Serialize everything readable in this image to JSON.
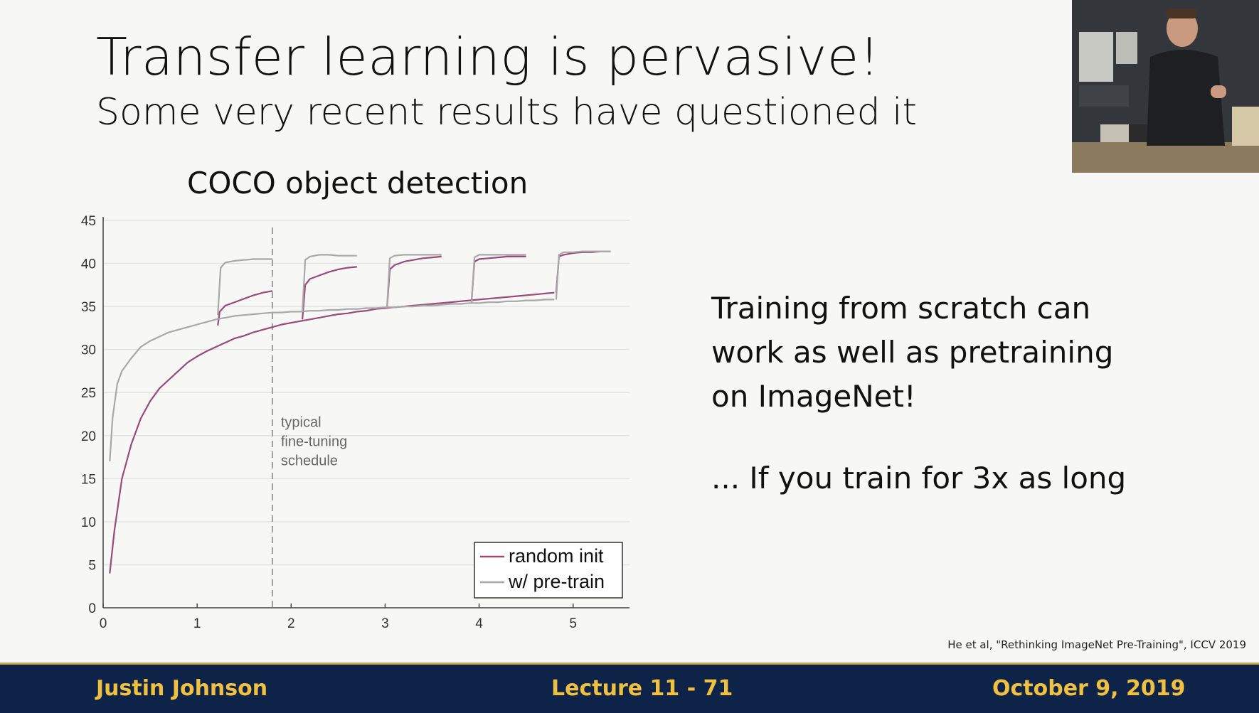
{
  "slide": {
    "title": "Transfer learning is pervasive!",
    "subtitle": "Some very recent results have questioned it",
    "side_text": [
      "Training from scratch can",
      "work as well as pretraining",
      "on ImageNet!"
    ],
    "side_note": "... If you train for 3x as long",
    "citation": "He et al, \"Rethinking ImageNet Pre-Training\", ICCV 2019"
  },
  "footer": {
    "author": "Justin Johnson",
    "lecture": "Lecture 11 - 71",
    "date": "October 9, 2019"
  },
  "chart_data": {
    "type": "line",
    "title": "COCO object detection",
    "xlabel": "",
    "ylabel": "",
    "xlim": [
      0,
      5.6
    ],
    "ylim": [
      0,
      45
    ],
    "xticks": [
      0,
      1,
      2,
      3,
      4,
      5
    ],
    "yticks": [
      0,
      5,
      10,
      15,
      20,
      25,
      30,
      35,
      40,
      45
    ],
    "grid": "horizontal",
    "legend": "bottom-right",
    "annotation": {
      "x": 1.8,
      "lines": [
        "typical",
        "fine-tuning",
        "schedule"
      ]
    },
    "colors": {
      "random": "#9b4a78",
      "pretrain": "#a8a8a8",
      "vline": "#888888",
      "grid": "#e3e3e3"
    },
    "series": [
      {
        "name": "random init",
        "color": "#9b4a78",
        "segments": [
          [
            [
              0.07,
              4
            ],
            [
              0.12,
              9
            ],
            [
              0.2,
              15
            ],
            [
              0.3,
              19
            ],
            [
              0.4,
              22
            ],
            [
              0.5,
              24
            ],
            [
              0.6,
              25.5
            ],
            [
              0.7,
              26.5
            ],
            [
              0.8,
              27.5
            ],
            [
              0.9,
              28.5
            ],
            [
              1.0,
              29.2
            ],
            [
              1.1,
              29.8
            ],
            [
              1.2,
              30.3
            ],
            [
              1.3,
              30.8
            ],
            [
              1.4,
              31.3
            ],
            [
              1.5,
              31.6
            ],
            [
              1.6,
              32
            ],
            [
              1.7,
              32.3
            ],
            [
              1.8,
              32.6
            ],
            [
              1.9,
              32.9
            ],
            [
              2.0,
              33.1
            ],
            [
              2.1,
              33.3
            ],
            [
              2.2,
              33.5
            ],
            [
              2.3,
              33.7
            ],
            [
              2.4,
              33.9
            ],
            [
              2.5,
              34.1
            ],
            [
              2.6,
              34.2
            ],
            [
              2.7,
              34.4
            ],
            [
              2.8,
              34.5
            ],
            [
              2.9,
              34.7
            ],
            [
              3.0,
              34.8
            ],
            [
              3.1,
              34.9
            ],
            [
              3.2,
              35
            ],
            [
              3.3,
              35.1
            ],
            [
              3.4,
              35.2
            ],
            [
              3.5,
              35.3
            ],
            [
              3.6,
              35.4
            ],
            [
              3.7,
              35.5
            ],
            [
              3.8,
              35.6
            ],
            [
              3.9,
              35.7
            ],
            [
              4.0,
              35.8
            ],
            [
              4.1,
              35.9
            ],
            [
              4.2,
              36
            ],
            [
              4.3,
              36.1
            ],
            [
              4.4,
              36.2
            ],
            [
              4.5,
              36.3
            ],
            [
              4.6,
              36.4
            ],
            [
              4.7,
              36.5
            ],
            [
              4.8,
              36.6
            ]
          ],
          [
            [
              1.22,
              32.8
            ],
            [
              1.24,
              34.4
            ],
            [
              1.3,
              35.1
            ],
            [
              1.4,
              35.5
            ],
            [
              1.5,
              35.9
            ],
            [
              1.6,
              36.3
            ],
            [
              1.7,
              36.6
            ],
            [
              1.8,
              36.8
            ]
          ],
          [
            [
              2.12,
              33.5
            ],
            [
              2.15,
              37.5
            ],
            [
              2.2,
              38.2
            ],
            [
              2.3,
              38.6
            ],
            [
              2.4,
              39
            ],
            [
              2.5,
              39.3
            ],
            [
              2.6,
              39.5
            ],
            [
              2.7,
              39.6
            ]
          ],
          [
            [
              3.02,
              34.8
            ],
            [
              3.05,
              39.3
            ],
            [
              3.1,
              39.8
            ],
            [
              3.2,
              40.2
            ],
            [
              3.3,
              40.4
            ],
            [
              3.4,
              40.6
            ],
            [
              3.5,
              40.7
            ],
            [
              3.6,
              40.8
            ]
          ],
          [
            [
              3.92,
              35.7
            ],
            [
              3.95,
              40.2
            ],
            [
              4.0,
              40.5
            ],
            [
              4.1,
              40.6
            ],
            [
              4.2,
              40.7
            ],
            [
              4.3,
              40.8
            ],
            [
              4.4,
              40.8
            ],
            [
              4.5,
              40.8
            ]
          ],
          [
            [
              4.82,
              36.6
            ],
            [
              4.85,
              40.8
            ],
            [
              4.9,
              41
            ],
            [
              5.0,
              41.2
            ],
            [
              5.1,
              41.3
            ],
            [
              5.2,
              41.3
            ],
            [
              5.3,
              41.4
            ],
            [
              5.4,
              41.4
            ]
          ]
        ]
      },
      {
        "name": "w/ pre-train",
        "color": "#a8a8a8",
        "segments": [
          [
            [
              0.07,
              17
            ],
            [
              0.1,
              22
            ],
            [
              0.15,
              26
            ],
            [
              0.2,
              27.5
            ],
            [
              0.3,
              29
            ],
            [
              0.4,
              30.3
            ],
            [
              0.5,
              31
            ],
            [
              0.6,
              31.5
            ],
            [
              0.7,
              32
            ],
            [
              0.8,
              32.3
            ],
            [
              0.9,
              32.6
            ],
            [
              1.0,
              32.9
            ],
            [
              1.1,
              33.2
            ],
            [
              1.2,
              33.5
            ],
            [
              1.3,
              33.7
            ],
            [
              1.4,
              33.9
            ],
            [
              1.5,
              34
            ],
            [
              1.6,
              34.1
            ],
            [
              1.7,
              34.2
            ],
            [
              1.8,
              34.3
            ],
            [
              1.9,
              34.3
            ],
            [
              2.0,
              34.4
            ],
            [
              2.1,
              34.4
            ],
            [
              2.2,
              34.5
            ],
            [
              2.3,
              34.5
            ],
            [
              2.4,
              34.6
            ],
            [
              2.5,
              34.6
            ],
            [
              2.6,
              34.7
            ],
            [
              2.7,
              34.7
            ],
            [
              2.8,
              34.8
            ],
            [
              2.9,
              34.8
            ],
            [
              3.0,
              34.9
            ],
            [
              3.1,
              34.9
            ],
            [
              3.2,
              35
            ],
            [
              3.3,
              35
            ],
            [
              3.4,
              35.1
            ],
            [
              3.5,
              35.1
            ],
            [
              3.6,
              35.2
            ],
            [
              3.7,
              35.3
            ],
            [
              3.8,
              35.3
            ],
            [
              3.9,
              35.4
            ],
            [
              4.0,
              35.4
            ],
            [
              4.1,
              35.5
            ],
            [
              4.2,
              35.5
            ],
            [
              4.3,
              35.6
            ],
            [
              4.4,
              35.6
            ],
            [
              4.5,
              35.7
            ],
            [
              4.6,
              35.7
            ],
            [
              4.7,
              35.8
            ],
            [
              4.8,
              35.8
            ]
          ],
          [
            [
              1.22,
              34.0
            ],
            [
              1.25,
              39.5
            ],
            [
              1.3,
              40.1
            ],
            [
              1.4,
              40.3
            ],
            [
              1.5,
              40.4
            ],
            [
              1.6,
              40.5
            ],
            [
              1.7,
              40.5
            ],
            [
              1.8,
              40.5
            ]
          ],
          [
            [
              2.12,
              34.4
            ],
            [
              2.15,
              40.4
            ],
            [
              2.2,
              40.8
            ],
            [
              2.3,
              41
            ],
            [
              2.4,
              41
            ],
            [
              2.5,
              40.9
            ],
            [
              2.6,
              40.9
            ],
            [
              2.7,
              40.9
            ]
          ],
          [
            [
              3.02,
              34.9
            ],
            [
              3.05,
              40.6
            ],
            [
              3.1,
              40.9
            ],
            [
              3.2,
              41
            ],
            [
              3.3,
              41
            ],
            [
              3.4,
              41
            ],
            [
              3.5,
              41
            ],
            [
              3.6,
              41
            ]
          ],
          [
            [
              3.92,
              35.4
            ],
            [
              3.95,
              40.7
            ],
            [
              4.0,
              41
            ],
            [
              4.1,
              41
            ],
            [
              4.2,
              41
            ],
            [
              4.3,
              41
            ],
            [
              4.4,
              41
            ],
            [
              4.5,
              41
            ]
          ],
          [
            [
              4.82,
              35.8
            ],
            [
              4.85,
              41
            ],
            [
              4.9,
              41.3
            ],
            [
              5.0,
              41.3
            ],
            [
              5.1,
              41.4
            ],
            [
              5.2,
              41.4
            ],
            [
              5.3,
              41.4
            ],
            [
              5.4,
              41.4
            ]
          ]
        ]
      }
    ]
  }
}
